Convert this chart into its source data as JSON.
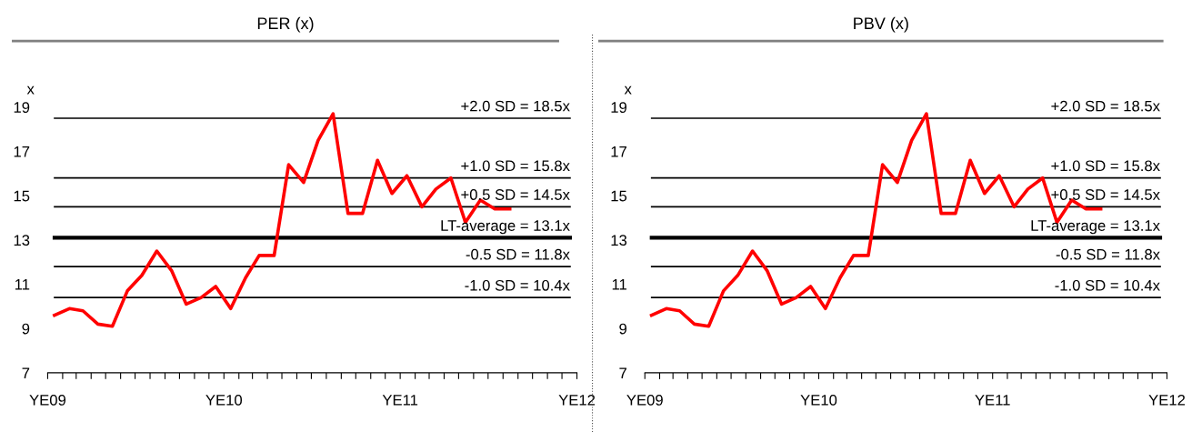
{
  "chart_data": [
    {
      "type": "line",
      "title": "PER (x)",
      "ylabel": "x",
      "x": [
        "2010-01-15",
        "2010-02-15",
        "2010-03-15",
        "2010-04-15",
        "2010-05-15",
        "2010-06-15",
        "2010-07-15",
        "2010-08-15",
        "2010-09-15",
        "2010-10-15",
        "2010-11-15",
        "2010-12-15",
        "2011-01-15",
        "2011-02-15",
        "2011-03-15",
        "2011-04-15",
        "2011-05-15",
        "2011-06-15",
        "2011-07-15",
        "2011-08-15",
        "2011-09-15",
        "2011-10-15",
        "2011-11-15",
        "2011-12-15",
        "2012-01-15",
        "2012-02-15",
        "2012-03-15",
        "2012-04-15",
        "2012-05-15",
        "2012-06-15",
        "2012-07-15",
        "2012-08-15"
      ],
      "series": [
        {
          "color": "#ff0000",
          "values": [
            9.6,
            9.9,
            9.8,
            9.2,
            9.1,
            10.7,
            11.4,
            12.5,
            11.6,
            10.1,
            10.4,
            10.9,
            9.9,
            11.3,
            12.3,
            12.3,
            16.4,
            15.6,
            17.5,
            18.7,
            14.2,
            14.2,
            16.6,
            15.1,
            15.9,
            14.5,
            15.3,
            15.8,
            13.8,
            14.8,
            14.4,
            14.4
          ]
        }
      ],
      "xlim": [
        "2010-01-01",
        "2013-01-01"
      ],
      "xticks": [
        {
          "value": "2010-01-01",
          "label": "YE09"
        },
        {
          "value": "2010-02-01",
          "label": null
        },
        {
          "value": "2010-03-01",
          "label": null
        },
        {
          "value": "2010-04-01",
          "label": null
        },
        {
          "value": "2010-05-01",
          "label": null
        },
        {
          "value": "2010-06-01",
          "label": null
        },
        {
          "value": "2010-07-01",
          "label": null
        },
        {
          "value": "2010-08-01",
          "label": null
        },
        {
          "value": "2010-09-01",
          "label": null
        },
        {
          "value": "2010-10-01",
          "label": null
        },
        {
          "value": "2010-11-01",
          "label": null
        },
        {
          "value": "2010-12-01",
          "label": null
        },
        {
          "value": "2011-01-01",
          "label": "YE10"
        },
        {
          "value": "2011-02-01",
          "label": null
        },
        {
          "value": "2011-03-01",
          "label": null
        },
        {
          "value": "2011-04-01",
          "label": null
        },
        {
          "value": "2011-05-01",
          "label": null
        },
        {
          "value": "2011-06-01",
          "label": null
        },
        {
          "value": "2011-07-01",
          "label": null
        },
        {
          "value": "2011-08-01",
          "label": null
        },
        {
          "value": "2011-09-01",
          "label": null
        },
        {
          "value": "2011-10-01",
          "label": null
        },
        {
          "value": "2011-11-01",
          "label": null
        },
        {
          "value": "2011-12-01",
          "label": null
        },
        {
          "value": "2012-01-01",
          "label": "YE11"
        },
        {
          "value": "2012-02-01",
          "label": null
        },
        {
          "value": "2012-03-01",
          "label": null
        },
        {
          "value": "2012-04-01",
          "label": null
        },
        {
          "value": "2012-05-01",
          "label": null
        },
        {
          "value": "2012-06-01",
          "label": null
        },
        {
          "value": "2012-07-01",
          "label": null
        },
        {
          "value": "2012-08-01",
          "label": null
        },
        {
          "value": "2012-09-01",
          "label": null
        },
        {
          "value": "2012-10-01",
          "label": null
        },
        {
          "value": "2012-11-01",
          "label": null
        },
        {
          "value": "2012-12-01",
          "label": null
        },
        {
          "value": "2013-01-01",
          "label": "YE12"
        }
      ],
      "ylim": [
        7,
        19
      ],
      "yticks": [
        7,
        9,
        11,
        13,
        15,
        17,
        19
      ],
      "ref_lines": [
        {
          "axis": "y",
          "value": 18.5,
          "label": "+2.0 SD = 18.5x",
          "color": "#000000"
        },
        {
          "axis": "y",
          "value": 15.8,
          "label": "+1.0 SD = 15.8x",
          "color": "#000000"
        },
        {
          "axis": "y",
          "value": 14.5,
          "label": "+0.5 SD = 14.5x",
          "color": "#000000"
        },
        {
          "axis": "y",
          "value": 13.1,
          "label": "LT-average = 13.1x",
          "color": "#000000"
        },
        {
          "axis": "y",
          "value": 11.8,
          "label": "-0.5 SD = 11.8x",
          "color": "#000000"
        },
        {
          "axis": "y",
          "value": 10.4,
          "label": "-1.0 SD = 10.4x",
          "color": "#000000"
        }
      ],
      "line_style": "solid",
      "marker": "none",
      "grid": false,
      "legend": false
    },
    {
      "type": "line",
      "title": "PBV (x)",
      "ylabel": "x",
      "x": [
        "2010-01-15",
        "2010-02-15",
        "2010-03-15",
        "2010-04-15",
        "2010-05-15",
        "2010-06-15",
        "2010-07-15",
        "2010-08-15",
        "2010-09-15",
        "2010-10-15",
        "2010-11-15",
        "2010-12-15",
        "2011-01-15",
        "2011-02-15",
        "2011-03-15",
        "2011-04-15",
        "2011-05-15",
        "2011-06-15",
        "2011-07-15",
        "2011-08-15",
        "2011-09-15",
        "2011-10-15",
        "2011-11-15",
        "2011-12-15",
        "2012-01-15",
        "2012-02-15",
        "2012-03-15",
        "2012-04-15",
        "2012-05-15",
        "2012-06-15",
        "2012-07-15",
        "2012-08-15"
      ],
      "series": [
        {
          "color": "#ff0000",
          "values": [
            9.6,
            9.9,
            9.8,
            9.2,
            9.1,
            10.7,
            11.4,
            12.5,
            11.6,
            10.1,
            10.4,
            10.9,
            9.9,
            11.3,
            12.3,
            12.3,
            16.4,
            15.6,
            17.5,
            18.7,
            14.2,
            14.2,
            16.6,
            15.1,
            15.9,
            14.5,
            15.3,
            15.8,
            13.8,
            14.8,
            14.4,
            14.4
          ]
        }
      ],
      "xlim": [
        "2010-01-01",
        "2013-01-01"
      ],
      "xticks": [
        {
          "value": "2010-01-01",
          "label": "YE09"
        },
        {
          "value": "2010-02-01",
          "label": null
        },
        {
          "value": "2010-03-01",
          "label": null
        },
        {
          "value": "2010-04-01",
          "label": null
        },
        {
          "value": "2010-05-01",
          "label": null
        },
        {
          "value": "2010-06-01",
          "label": null
        },
        {
          "value": "2010-07-01",
          "label": null
        },
        {
          "value": "2010-08-01",
          "label": null
        },
        {
          "value": "2010-09-01",
          "label": null
        },
        {
          "value": "2010-10-01",
          "label": null
        },
        {
          "value": "2010-11-01",
          "label": null
        },
        {
          "value": "2010-12-01",
          "label": null
        },
        {
          "value": "2011-01-01",
          "label": "YE10"
        },
        {
          "value": "2011-02-01",
          "label": null
        },
        {
          "value": "2011-03-01",
          "label": null
        },
        {
          "value": "2011-04-01",
          "label": null
        },
        {
          "value": "2011-05-01",
          "label": null
        },
        {
          "value": "2011-06-01",
          "label": null
        },
        {
          "value": "2011-07-01",
          "label": null
        },
        {
          "value": "2011-08-01",
          "label": null
        },
        {
          "value": "2011-09-01",
          "label": null
        },
        {
          "value": "2011-10-01",
          "label": null
        },
        {
          "value": "2011-11-01",
          "label": null
        },
        {
          "value": "2011-12-01",
          "label": null
        },
        {
          "value": "2012-01-01",
          "label": "YE11"
        },
        {
          "value": "2012-02-01",
          "label": null
        },
        {
          "value": "2012-03-01",
          "label": null
        },
        {
          "value": "2012-04-01",
          "label": null
        },
        {
          "value": "2012-05-01",
          "label": null
        },
        {
          "value": "2012-06-01",
          "label": null
        },
        {
          "value": "2012-07-01",
          "label": null
        },
        {
          "value": "2012-08-01",
          "label": null
        },
        {
          "value": "2012-09-01",
          "label": null
        },
        {
          "value": "2012-10-01",
          "label": null
        },
        {
          "value": "2012-11-01",
          "label": null
        },
        {
          "value": "2012-12-01",
          "label": null
        },
        {
          "value": "2013-01-01",
          "label": "YE12"
        }
      ],
      "ylim": [
        7,
        19
      ],
      "yticks": [
        7,
        9,
        11,
        13,
        15,
        17,
        19
      ],
      "ref_lines": [
        {
          "axis": "y",
          "value": 18.5,
          "label": "+2.0 SD = 18.5x",
          "color": "#000000"
        },
        {
          "axis": "y",
          "value": 15.8,
          "label": "+1.0 SD = 15.8x",
          "color": "#000000"
        },
        {
          "axis": "y",
          "value": 14.5,
          "label": "+0.5 SD = 14.5x",
          "color": "#000000"
        },
        {
          "axis": "y",
          "value": 13.1,
          "label": "LT-average = 13.1x",
          "color": "#000000"
        },
        {
          "axis": "y",
          "value": 11.8,
          "label": "-0.5 SD = 11.8x",
          "color": "#000000"
        },
        {
          "axis": "y",
          "value": 10.4,
          "label": "-1.0 SD = 10.4x",
          "color": "#000000"
        }
      ],
      "line_style": "solid",
      "marker": "none",
      "grid": false,
      "legend": false
    }
  ]
}
